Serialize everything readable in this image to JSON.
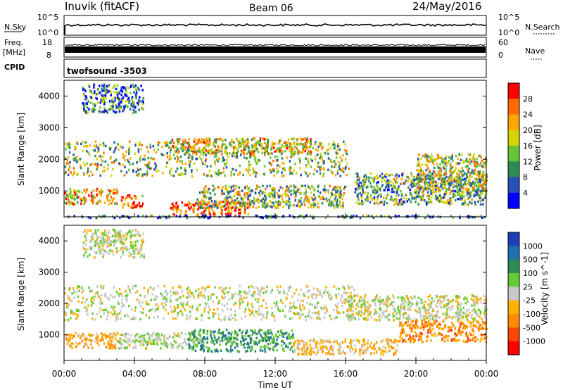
{
  "header": {
    "title": "Inuvik (fitACF)",
    "beam": "Beam 06",
    "date": "24/May/2016"
  },
  "noise_panel": {
    "left_label": "N.Sky",
    "right_label": "N.Search",
    "left_ticks": [
      "10^5",
      "10^0"
    ],
    "right_ticks": [
      "10^5",
      "10^0"
    ]
  },
  "freq_panel": {
    "left_label_1": "Freq.",
    "left_label_2": "[MHz]",
    "right_label": "Nave",
    "left_ticks": [
      "18",
      "8"
    ],
    "right_ticks": [
      "60",
      "0"
    ]
  },
  "cpid": {
    "label": "CPID",
    "value": "twofsound -3503"
  },
  "time_axis": {
    "label": "Time UT",
    "ticks": [
      "00:00",
      "04:00",
      "08:00",
      "12:00",
      "16:00",
      "20:00",
      "00:00"
    ]
  },
  "chart_data": [
    {
      "type": "heatmap",
      "title": "",
      "xlabel": "Time UT",
      "ylabel": "Slant Range [km]",
      "xlim": [
        0,
        24
      ],
      "ylim": [
        180,
        4500
      ],
      "yticks": [
        1000,
        2000,
        3000,
        4000
      ],
      "colorbar": {
        "label": "Power [dB]",
        "ticks": [
          "28",
          "24",
          "20",
          "16",
          "12",
          "8",
          "4"
        ],
        "range": [
          0,
          30
        ],
        "colors": [
          "#0000ff",
          "#2a4fb8",
          "#2e8b57",
          "#66c33a",
          "#d4d400",
          "#ffa500",
          "#ff6a00",
          "#ff0000"
        ]
      },
      "scatter_regions": [
        {
          "t0": 0.0,
          "t1": 16.2,
          "r0": 1500,
          "r1": 2600,
          "value": 14
        },
        {
          "t0": 6.0,
          "t1": 14.0,
          "r0": 2200,
          "r1": 2700,
          "value": 18
        },
        {
          "t0": 0.0,
          "t1": 3.0,
          "r0": 600,
          "r1": 1100,
          "value": 20
        },
        {
          "t0": 3.2,
          "t1": 4.5,
          "r0": 500,
          "r1": 900,
          "value": 24
        },
        {
          "t0": 6.0,
          "t1": 10.5,
          "r0": 250,
          "r1": 700,
          "value": 26
        },
        {
          "t0": 7.5,
          "t1": 16.0,
          "r0": 500,
          "r1": 1200,
          "value": 14
        },
        {
          "t0": 16.5,
          "t1": 24.0,
          "r0": 600,
          "r1": 1600,
          "value": 12
        },
        {
          "t0": 20.0,
          "t1": 24.0,
          "r0": 1000,
          "r1": 2200,
          "value": 16
        },
        {
          "t0": 1.0,
          "t1": 4.5,
          "r0": 3500,
          "r1": 4400,
          "value": 8
        },
        {
          "t0": 0.0,
          "t1": 24.0,
          "r0": 180,
          "r1": 260,
          "value": 8
        }
      ]
    },
    {
      "type": "heatmap",
      "title": "",
      "xlabel": "Time UT",
      "ylabel": "Slant Range [km]",
      "xlim": [
        0,
        24
      ],
      "ylim": [
        180,
        4500
      ],
      "yticks": [
        1000,
        2000,
        3000,
        4000
      ],
      "colorbar": {
        "label": "Velocity [m s^-1]",
        "ticks": [
          "1000",
          "500",
          "100",
          "25",
          "-25",
          "-100",
          "-500",
          "-1000"
        ],
        "range": [
          -1000,
          1000
        ],
        "colors": [
          "#ff0000",
          "#ff4500",
          "#ff8c00",
          "#ffb000",
          "#c8c8c8",
          "#66cc33",
          "#2e8b57",
          "#1f6fb0",
          "#1c3fb8"
        ]
      },
      "scatter_regions": [
        {
          "t0": 0.0,
          "t1": 16.5,
          "r0": 1500,
          "r1": 2600,
          "value": 0
        },
        {
          "t0": 16.0,
          "t1": 24.0,
          "r0": 1500,
          "r1": 2300,
          "value": 0
        },
        {
          "t0": 0.0,
          "t1": 3.0,
          "r0": 600,
          "r1": 1100,
          "value": -300
        },
        {
          "t0": 3.0,
          "t1": 8.0,
          "r0": 600,
          "r1": 1100,
          "value": 100
        },
        {
          "t0": 7.0,
          "t1": 13.0,
          "r0": 500,
          "r1": 1200,
          "value": 400
        },
        {
          "t0": 13.0,
          "t1": 19.0,
          "r0": 400,
          "r1": 900,
          "value": -200
        },
        {
          "t0": 19.0,
          "t1": 24.0,
          "r0": 800,
          "r1": 1500,
          "value": -400
        },
        {
          "t0": 1.0,
          "t1": 4.5,
          "r0": 3500,
          "r1": 4400,
          "value": 0
        }
      ]
    }
  ]
}
